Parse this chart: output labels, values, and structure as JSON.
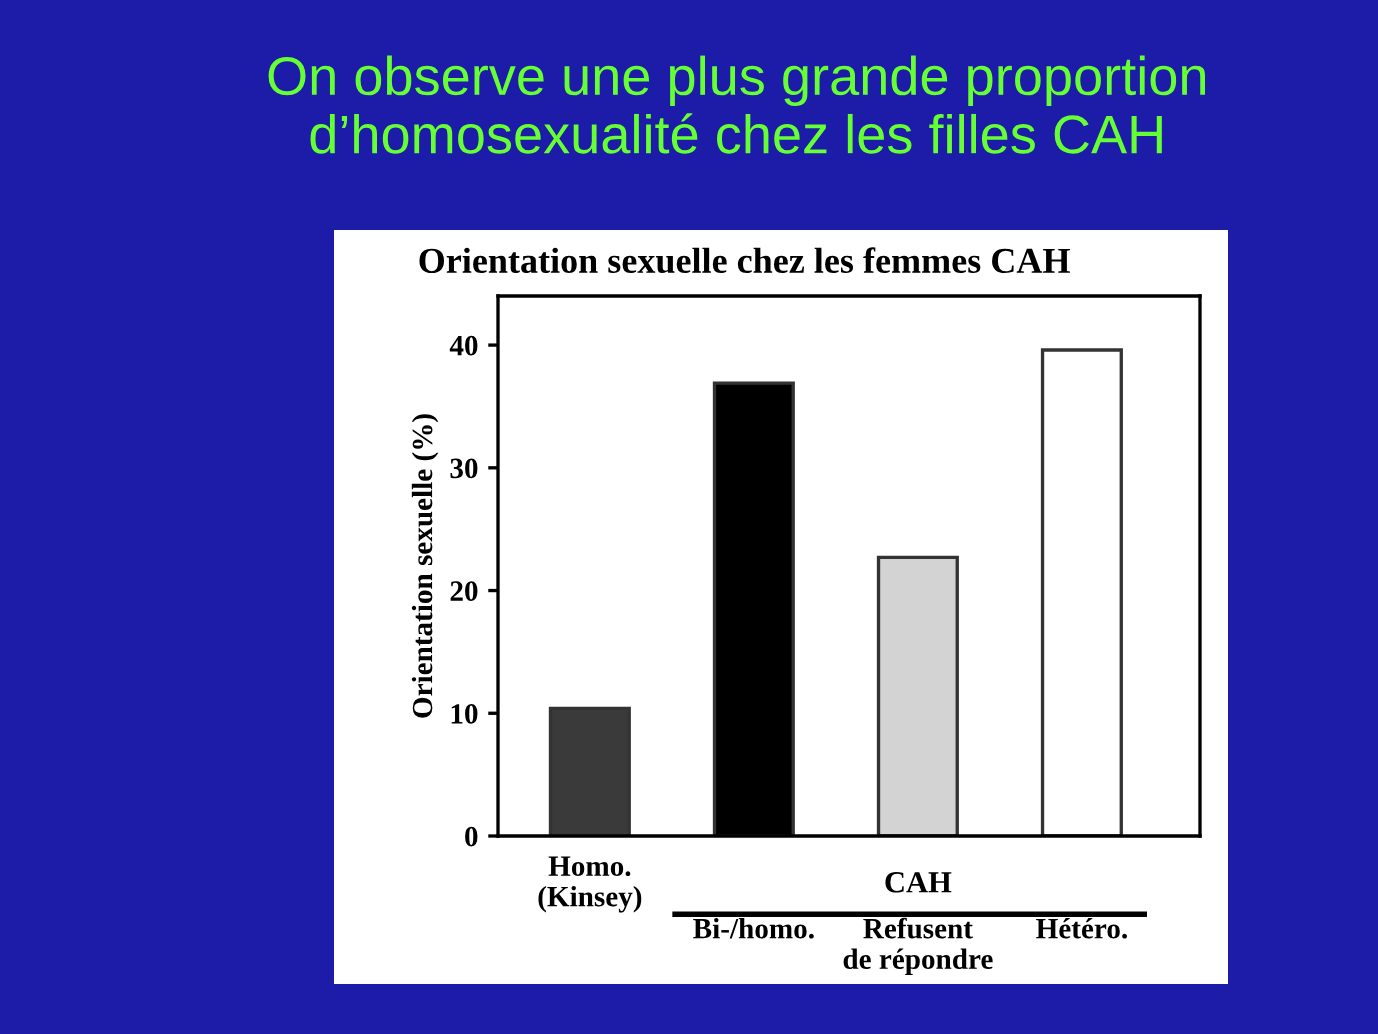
{
  "chart_data": {
    "type": "bar",
    "title": "On observe une plus grande proportion\nd’homosexualité chez les filles CAH",
    "subtitle": "Orientation sexuelle chez les femmes CAH",
    "ylabel": "Orientation sexuelle (%)",
    "categories": [
      "Homo.\n(Kinsey)",
      "Bi-/homo.",
      "Refusent\nde répondre",
      "Hétéro."
    ],
    "values": [
      10.4,
      36.9,
      22.7,
      39.6
    ],
    "colors": [
      "#3a3a3a",
      "#000000",
      "#d3d3d3",
      "#ffffff"
    ],
    "annotations": [
      "CAH"
    ],
    "ylim": [
      0,
      44
    ],
    "yticks": [
      0,
      10,
      20,
      30,
      40
    ]
  }
}
